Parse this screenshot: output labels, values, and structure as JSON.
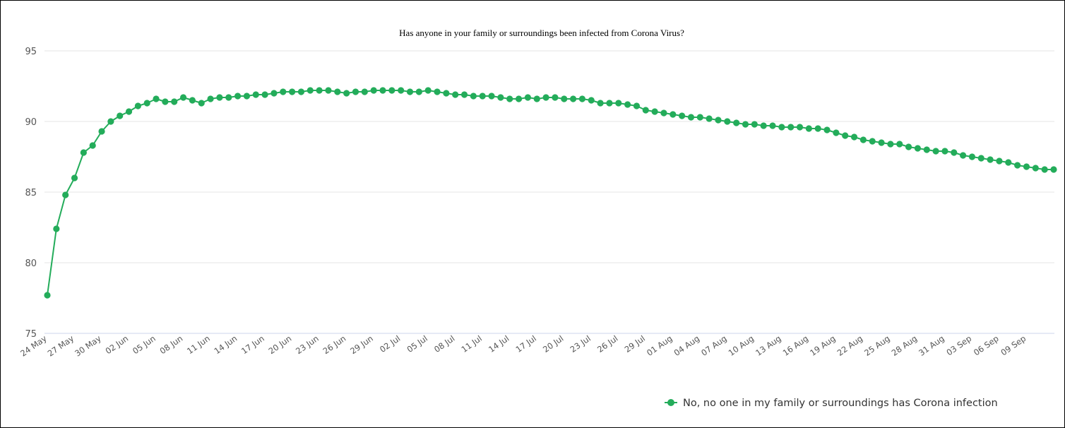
{
  "chart_data": {
    "type": "line",
    "title": "Has anyone in your family or surroundings been infected from Corona Virus?",
    "ylim": [
      75,
      95
    ],
    "yticks": [
      75,
      80,
      85,
      90,
      95
    ],
    "grid": true,
    "legend_position": "bottom-right",
    "x_tick_labels": [
      "24 May",
      "27 May",
      "30 May",
      "02 Jun",
      "05 Jun",
      "08 Jun",
      "11 Jun",
      "14 Jun",
      "17 Jun",
      "20 Jun",
      "23 Jun",
      "26 Jun",
      "29 Jun",
      "02 Jul",
      "05 Jul",
      "08 Jul",
      "11 Jul",
      "14 Jul",
      "17 Jul",
      "20 Jul",
      "23 Jul",
      "26 Jul",
      "29 Jul",
      "01 Aug",
      "04 Aug",
      "07 Aug",
      "10 Aug",
      "13 Aug",
      "16 Aug",
      "19 Aug",
      "22 Aug",
      "25 Aug",
      "28 Aug",
      "31 Aug",
      "03 Sep",
      "06 Sep",
      "09 Sep"
    ],
    "x_start_date": "24 May",
    "x_end_date": "11 Sep",
    "series": [
      {
        "name": "No, no one in my family or surroundings has Corona infection",
        "color": "#23ac5a",
        "values": [
          77.7,
          82.4,
          84.8,
          86.0,
          87.8,
          88.3,
          89.3,
          90.0,
          90.4,
          90.7,
          91.1,
          91.3,
          91.6,
          91.4,
          91.4,
          91.7,
          91.5,
          91.3,
          91.6,
          91.7,
          91.7,
          91.8,
          91.8,
          91.9,
          91.9,
          92.0,
          92.1,
          92.1,
          92.1,
          92.2,
          92.2,
          92.2,
          92.1,
          92.0,
          92.1,
          92.1,
          92.2,
          92.2,
          92.2,
          92.2,
          92.1,
          92.1,
          92.2,
          92.1,
          92.0,
          91.9,
          91.9,
          91.8,
          91.8,
          91.8,
          91.7,
          91.6,
          91.6,
          91.7,
          91.6,
          91.7,
          91.7,
          91.6,
          91.6,
          91.6,
          91.5,
          91.3,
          91.3,
          91.3,
          91.2,
          91.1,
          90.8,
          90.7,
          90.6,
          90.5,
          90.4,
          90.3,
          90.3,
          90.2,
          90.1,
          90.0,
          89.9,
          89.8,
          89.8,
          89.7,
          89.7,
          89.6,
          89.6,
          89.6,
          89.5,
          89.5,
          89.4,
          89.2,
          89.0,
          88.9,
          88.7,
          88.6,
          88.5,
          88.4,
          88.4,
          88.2,
          88.1,
          88.0,
          87.9,
          87.9,
          87.8,
          87.6,
          87.5,
          87.4,
          87.3,
          87.2,
          87.1,
          86.9,
          86.8,
          86.7,
          86.6,
          86.6
        ]
      }
    ]
  }
}
